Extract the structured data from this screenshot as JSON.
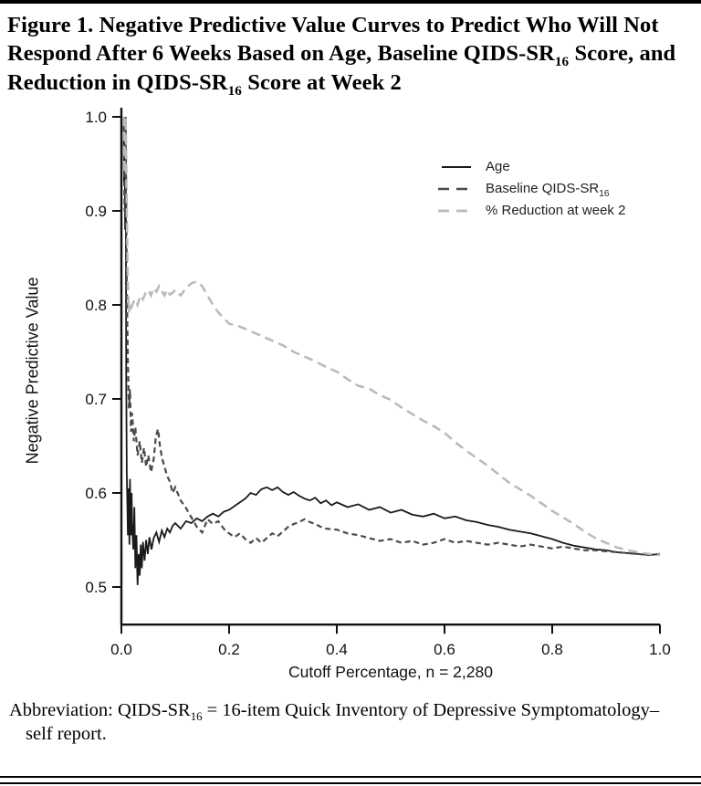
{
  "page": {
    "title_segments": {
      "seg1": "Figure 1. Negative Predictive Value Curves to Predict Who Will Not Respond After 6 Weeks Based on Age, Baseline QIDS-SR",
      "sub1": "16",
      "seg2": " Score, and Reduction in QIDS-SR",
      "sub2": "16",
      "seg3": " Score at Week 2"
    },
    "footer": {
      "seg1": "Abbreviation: QIDS-SR",
      "sub1": "16",
      "seg2": " = 16-item Quick Inventory of Depressive Symptomatology–self report."
    }
  },
  "legend": {
    "items": [
      {
        "label": "Age"
      },
      {
        "label_pre": "Baseline QIDS-SR",
        "label_sub": "16"
      },
      {
        "label": "% Reduction at week 2"
      }
    ]
  },
  "chart_data": {
    "type": "line",
    "title": "",
    "xlabel": "Cutoff Percentage, n = 2,280",
    "ylabel": "Negative Predictive Value",
    "xlim": [
      0,
      1
    ],
    "ylim": [
      0.46,
      1.0
    ],
    "grid": false,
    "legend_position": "upper right inside",
    "x_tick_values": [
      0,
      0.2,
      0.4,
      0.6,
      0.8,
      1.0
    ],
    "x_tick_labels": [
      "0.0",
      "0.2",
      "0.4",
      "0.6",
      "0.8",
      "1.0"
    ],
    "y_tick_values": [
      1.0,
      0.9,
      0.8,
      0.7,
      0.6,
      0.5
    ],
    "y_tick_labels": [
      "1.0",
      "0.9",
      "0.8",
      "0.7",
      "0.6",
      "0.5"
    ],
    "series": [
      {
        "name": "Age",
        "style": "solid",
        "color": "#1a1a1a",
        "width": 1.8,
        "points": [
          [
            0.004,
            1.0
          ],
          [
            0.005,
            0.93
          ],
          [
            0.006,
            1.0
          ],
          [
            0.007,
            0.88
          ],
          [
            0.008,
            0.99
          ],
          [
            0.009,
            0.72
          ],
          [
            0.01,
            0.62
          ],
          [
            0.011,
            0.59
          ],
          [
            0.012,
            0.555
          ],
          [
            0.013,
            0.605
          ],
          [
            0.014,
            0.57
          ],
          [
            0.015,
            0.545
          ],
          [
            0.016,
            0.615
          ],
          [
            0.017,
            0.58
          ],
          [
            0.018,
            0.555
          ],
          [
            0.019,
            0.6
          ],
          [
            0.02,
            0.565
          ],
          [
            0.022,
            0.54
          ],
          [
            0.024,
            0.585
          ],
          [
            0.026,
            0.52
          ],
          [
            0.028,
            0.555
          ],
          [
            0.03,
            0.502
          ],
          [
            0.032,
            0.535
          ],
          [
            0.034,
            0.512
          ],
          [
            0.036,
            0.545
          ],
          [
            0.038,
            0.52
          ],
          [
            0.04,
            0.548
          ],
          [
            0.043,
            0.528
          ],
          [
            0.046,
            0.55
          ],
          [
            0.049,
            0.535
          ],
          [
            0.052,
            0.553
          ],
          [
            0.056,
            0.54
          ],
          [
            0.06,
            0.552
          ],
          [
            0.065,
            0.558
          ],
          [
            0.07,
            0.548
          ],
          [
            0.075,
            0.56
          ],
          [
            0.08,
            0.553
          ],
          [
            0.085,
            0.562
          ],
          [
            0.09,
            0.558
          ],
          [
            0.095,
            0.565
          ],
          [
            0.1,
            0.568
          ],
          [
            0.11,
            0.562
          ],
          [
            0.12,
            0.57
          ],
          [
            0.13,
            0.568
          ],
          [
            0.14,
            0.573
          ],
          [
            0.15,
            0.57
          ],
          [
            0.16,
            0.575
          ],
          [
            0.17,
            0.578
          ],
          [
            0.18,
            0.575
          ],
          [
            0.19,
            0.58
          ],
          [
            0.2,
            0.582
          ],
          [
            0.21,
            0.586
          ],
          [
            0.22,
            0.59
          ],
          [
            0.23,
            0.594
          ],
          [
            0.24,
            0.6
          ],
          [
            0.25,
            0.598
          ],
          [
            0.26,
            0.604
          ],
          [
            0.27,
            0.606
          ],
          [
            0.28,
            0.603
          ],
          [
            0.29,
            0.606
          ],
          [
            0.3,
            0.601
          ],
          [
            0.31,
            0.598
          ],
          [
            0.32,
            0.601
          ],
          [
            0.33,
            0.597
          ],
          [
            0.34,
            0.594
          ],
          [
            0.35,
            0.592
          ],
          [
            0.36,
            0.595
          ],
          [
            0.37,
            0.589
          ],
          [
            0.38,
            0.592
          ],
          [
            0.39,
            0.587
          ],
          [
            0.4,
            0.59
          ],
          [
            0.42,
            0.585
          ],
          [
            0.44,
            0.588
          ],
          [
            0.46,
            0.582
          ],
          [
            0.48,
            0.585
          ],
          [
            0.5,
            0.579
          ],
          [
            0.52,
            0.582
          ],
          [
            0.54,
            0.577
          ],
          [
            0.56,
            0.575
          ],
          [
            0.58,
            0.578
          ],
          [
            0.6,
            0.573
          ],
          [
            0.62,
            0.575
          ],
          [
            0.64,
            0.571
          ],
          [
            0.66,
            0.569
          ],
          [
            0.68,
            0.566
          ],
          [
            0.7,
            0.564
          ],
          [
            0.72,
            0.561
          ],
          [
            0.74,
            0.559
          ],
          [
            0.76,
            0.557
          ],
          [
            0.78,
            0.554
          ],
          [
            0.8,
            0.551
          ],
          [
            0.82,
            0.547
          ],
          [
            0.84,
            0.544
          ],
          [
            0.86,
            0.542
          ],
          [
            0.88,
            0.54
          ],
          [
            0.9,
            0.539
          ],
          [
            0.92,
            0.537
          ],
          [
            0.94,
            0.536
          ],
          [
            0.96,
            0.535
          ],
          [
            0.98,
            0.534
          ],
          [
            1.0,
            0.535
          ]
        ]
      },
      {
        "name": "Baseline QIDS-SR16",
        "style": "dashed",
        "color": "#4a4a4a",
        "width": 2.2,
        "dash": "6 4",
        "points": [
          [
            0.004,
            1.0
          ],
          [
            0.006,
            0.9
          ],
          [
            0.008,
            1.0
          ],
          [
            0.01,
            0.82
          ],
          [
            0.012,
            0.74
          ],
          [
            0.014,
            0.69
          ],
          [
            0.016,
            0.71
          ],
          [
            0.018,
            0.665
          ],
          [
            0.02,
            0.685
          ],
          [
            0.023,
            0.655
          ],
          [
            0.026,
            0.67
          ],
          [
            0.03,
            0.64
          ],
          [
            0.034,
            0.655
          ],
          [
            0.038,
            0.632
          ],
          [
            0.042,
            0.648
          ],
          [
            0.046,
            0.628
          ],
          [
            0.05,
            0.64
          ],
          [
            0.055,
            0.622
          ],
          [
            0.06,
            0.636
          ],
          [
            0.064,
            0.66
          ],
          [
            0.068,
            0.668
          ],
          [
            0.072,
            0.648
          ],
          [
            0.076,
            0.636
          ],
          [
            0.08,
            0.628
          ],
          [
            0.085,
            0.618
          ],
          [
            0.09,
            0.612
          ],
          [
            0.095,
            0.6
          ],
          [
            0.1,
            0.606
          ],
          [
            0.11,
            0.592
          ],
          [
            0.12,
            0.584
          ],
          [
            0.13,
            0.574
          ],
          [
            0.14,
            0.564
          ],
          [
            0.15,
            0.558
          ],
          [
            0.16,
            0.572
          ],
          [
            0.17,
            0.567
          ],
          [
            0.18,
            0.57
          ],
          [
            0.19,
            0.562
          ],
          [
            0.2,
            0.557
          ],
          [
            0.21,
            0.553
          ],
          [
            0.22,
            0.557
          ],
          [
            0.23,
            0.551
          ],
          [
            0.24,
            0.547
          ],
          [
            0.25,
            0.552
          ],
          [
            0.26,
            0.547
          ],
          [
            0.27,
            0.552
          ],
          [
            0.28,
            0.557
          ],
          [
            0.29,
            0.554
          ],
          [
            0.3,
            0.559
          ],
          [
            0.31,
            0.564
          ],
          [
            0.32,
            0.567
          ],
          [
            0.33,
            0.569
          ],
          [
            0.34,
            0.572
          ],
          [
            0.35,
            0.569
          ],
          [
            0.36,
            0.567
          ],
          [
            0.37,
            0.564
          ],
          [
            0.38,
            0.562
          ],
          [
            0.4,
            0.561
          ],
          [
            0.42,
            0.557
          ],
          [
            0.44,
            0.555
          ],
          [
            0.46,
            0.552
          ],
          [
            0.48,
            0.549
          ],
          [
            0.5,
            0.551
          ],
          [
            0.52,
            0.547
          ],
          [
            0.54,
            0.549
          ],
          [
            0.56,
            0.545
          ],
          [
            0.58,
            0.547
          ],
          [
            0.6,
            0.551
          ],
          [
            0.62,
            0.547
          ],
          [
            0.64,
            0.549
          ],
          [
            0.66,
            0.547
          ],
          [
            0.68,
            0.545
          ],
          [
            0.7,
            0.547
          ],
          [
            0.72,
            0.545
          ],
          [
            0.74,
            0.543
          ],
          [
            0.76,
            0.545
          ],
          [
            0.78,
            0.543
          ],
          [
            0.8,
            0.541
          ],
          [
            0.82,
            0.543
          ],
          [
            0.84,
            0.541
          ],
          [
            0.86,
            0.539
          ],
          [
            0.88,
            0.539
          ],
          [
            0.9,
            0.538
          ],
          [
            0.92,
            0.537
          ],
          [
            0.94,
            0.536
          ],
          [
            0.96,
            0.535
          ],
          [
            0.98,
            0.534
          ],
          [
            1.0,
            0.535
          ]
        ]
      },
      {
        "name": "% Reduction at week 2",
        "style": "dashed",
        "color": "#b9b9b9",
        "width": 2.5,
        "dash": "10 6",
        "points": [
          [
            0.004,
            1.0
          ],
          [
            0.006,
            0.94
          ],
          [
            0.008,
            1.0
          ],
          [
            0.01,
            0.9
          ],
          [
            0.012,
            0.82
          ],
          [
            0.014,
            0.792
          ],
          [
            0.016,
            0.8
          ],
          [
            0.018,
            0.795
          ],
          [
            0.02,
            0.8
          ],
          [
            0.025,
            0.806
          ],
          [
            0.03,
            0.8
          ],
          [
            0.035,
            0.81
          ],
          [
            0.04,
            0.806
          ],
          [
            0.045,
            0.813
          ],
          [
            0.05,
            0.816
          ],
          [
            0.055,
            0.81
          ],
          [
            0.06,
            0.818
          ],
          [
            0.065,
            0.814
          ],
          [
            0.07,
            0.82
          ],
          [
            0.075,
            0.815
          ],
          [
            0.08,
            0.81
          ],
          [
            0.085,
            0.816
          ],
          [
            0.09,
            0.811
          ],
          [
            0.095,
            0.813
          ],
          [
            0.1,
            0.816
          ],
          [
            0.11,
            0.81
          ],
          [
            0.12,
            0.818
          ],
          [
            0.13,
            0.823
          ],
          [
            0.14,
            0.825
          ],
          [
            0.15,
            0.82
          ],
          [
            0.16,
            0.81
          ],
          [
            0.17,
            0.8
          ],
          [
            0.18,
            0.792
          ],
          [
            0.19,
            0.786
          ],
          [
            0.2,
            0.78
          ],
          [
            0.22,
            0.777
          ],
          [
            0.24,
            0.772
          ],
          [
            0.26,
            0.767
          ],
          [
            0.28,
            0.762
          ],
          [
            0.3,
            0.757
          ],
          [
            0.32,
            0.75
          ],
          [
            0.34,
            0.745
          ],
          [
            0.36,
            0.74
          ],
          [
            0.38,
            0.734
          ],
          [
            0.4,
            0.729
          ],
          [
            0.42,
            0.721
          ],
          [
            0.44,
            0.714
          ],
          [
            0.46,
            0.711
          ],
          [
            0.48,
            0.704
          ],
          [
            0.5,
            0.699
          ],
          [
            0.52,
            0.691
          ],
          [
            0.54,
            0.684
          ],
          [
            0.56,
            0.677
          ],
          [
            0.58,
            0.671
          ],
          [
            0.6,
            0.664
          ],
          [
            0.62,
            0.654
          ],
          [
            0.64,
            0.645
          ],
          [
            0.66,
            0.637
          ],
          [
            0.68,
            0.629
          ],
          [
            0.7,
            0.62
          ],
          [
            0.72,
            0.611
          ],
          [
            0.74,
            0.604
          ],
          [
            0.76,
            0.597
          ],
          [
            0.78,
            0.589
          ],
          [
            0.8,
            0.581
          ],
          [
            0.82,
            0.574
          ],
          [
            0.84,
            0.567
          ],
          [
            0.86,
            0.559
          ],
          [
            0.88,
            0.552
          ],
          [
            0.9,
            0.547
          ],
          [
            0.92,
            0.542
          ],
          [
            0.94,
            0.539
          ],
          [
            0.96,
            0.537
          ],
          [
            0.98,
            0.535
          ],
          [
            1.0,
            0.534
          ]
        ]
      }
    ]
  }
}
